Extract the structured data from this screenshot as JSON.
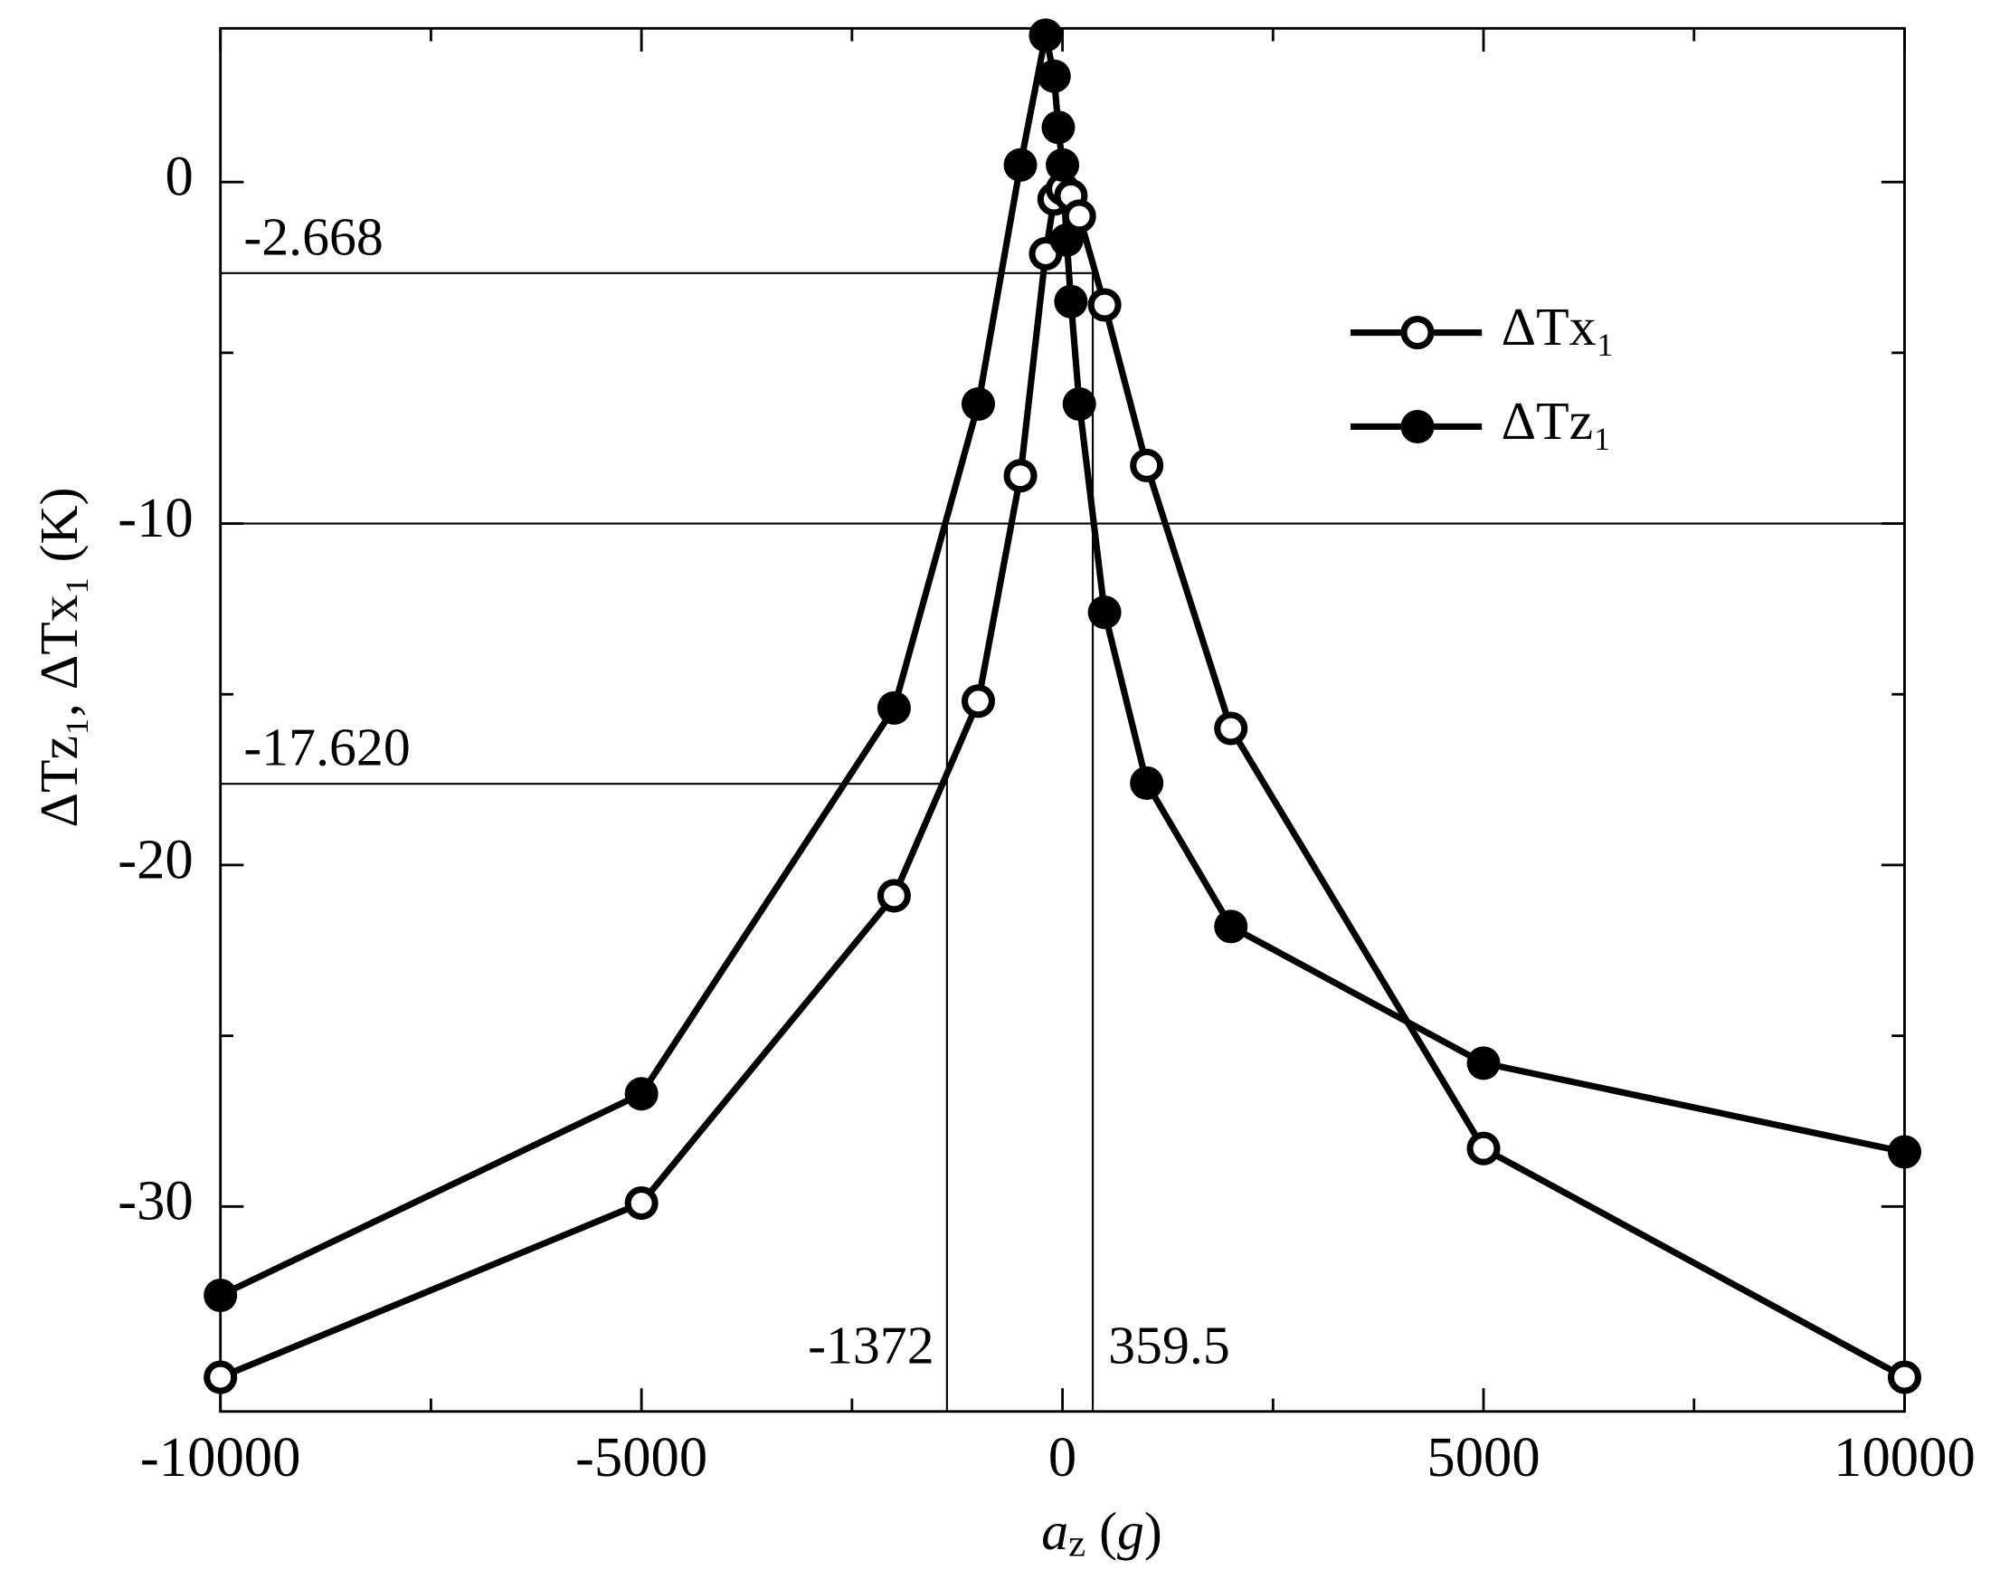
{
  "chart_data": {
    "type": "line",
    "xlabel": [
      "a",
      "z",
      " (",
      "g",
      ")"
    ],
    "ylabel": "ΔTz₁, ΔTx₁ (K)",
    "xlim": [
      -10000,
      10000
    ],
    "ylim": [
      -36,
      4.5
    ],
    "xticks": [
      -10000,
      -5000,
      0,
      5000,
      10000
    ],
    "xticks_minor": [
      -7500,
      -2500,
      2500,
      7500
    ],
    "yticks": [
      -30,
      -20,
      -10,
      0
    ],
    "yticks_minor": [
      -35,
      -25,
      -15,
      -5
    ],
    "legend": "upper right",
    "series": [
      {
        "name": "ΔTx₁",
        "color": "#000000",
        "marker": "open",
        "x": [
          -10000,
          -5000,
          -2000,
          -1000,
          -500,
          -200,
          -100,
          0,
          100,
          200,
          500,
          1000,
          2000,
          5000,
          10000
        ],
        "values": [
          -35.0,
          -29.9,
          -20.9,
          -15.2,
          -8.6,
          -2.1,
          -0.5,
          -0.2,
          -0.4,
          -1.0,
          -3.6,
          -8.3,
          -16.0,
          -28.3,
          -35.0
        ]
      },
      {
        "name": "ΔTz₁",
        "color": "#000000",
        "marker": "filled",
        "x": [
          -10000,
          -5000,
          -2000,
          -1000,
          -500,
          -200,
          -100,
          -50,
          0,
          50,
          100,
          200,
          500,
          1000,
          2000,
          5000,
          10000
        ],
        "values": [
          -32.6,
          -26.7,
          -15.4,
          -6.5,
          0.5,
          4.3,
          3.1,
          1.6,
          0.5,
          -1.7,
          -3.5,
          -6.5,
          -12.6,
          -17.6,
          -21.8,
          -25.8,
          -28.4
        ]
      }
    ],
    "ref_lines": [
      {
        "axis": "y",
        "value": -2.668,
        "label": "-2.668"
      },
      {
        "axis": "y",
        "value": -17.62,
        "label": "-17.620"
      },
      {
        "axis": "y",
        "value": -10
      },
      {
        "axis": "x",
        "value": -1372,
        "label": "-1372"
      },
      {
        "axis": "x",
        "value": 359.5,
        "label": "359.5"
      }
    ]
  }
}
